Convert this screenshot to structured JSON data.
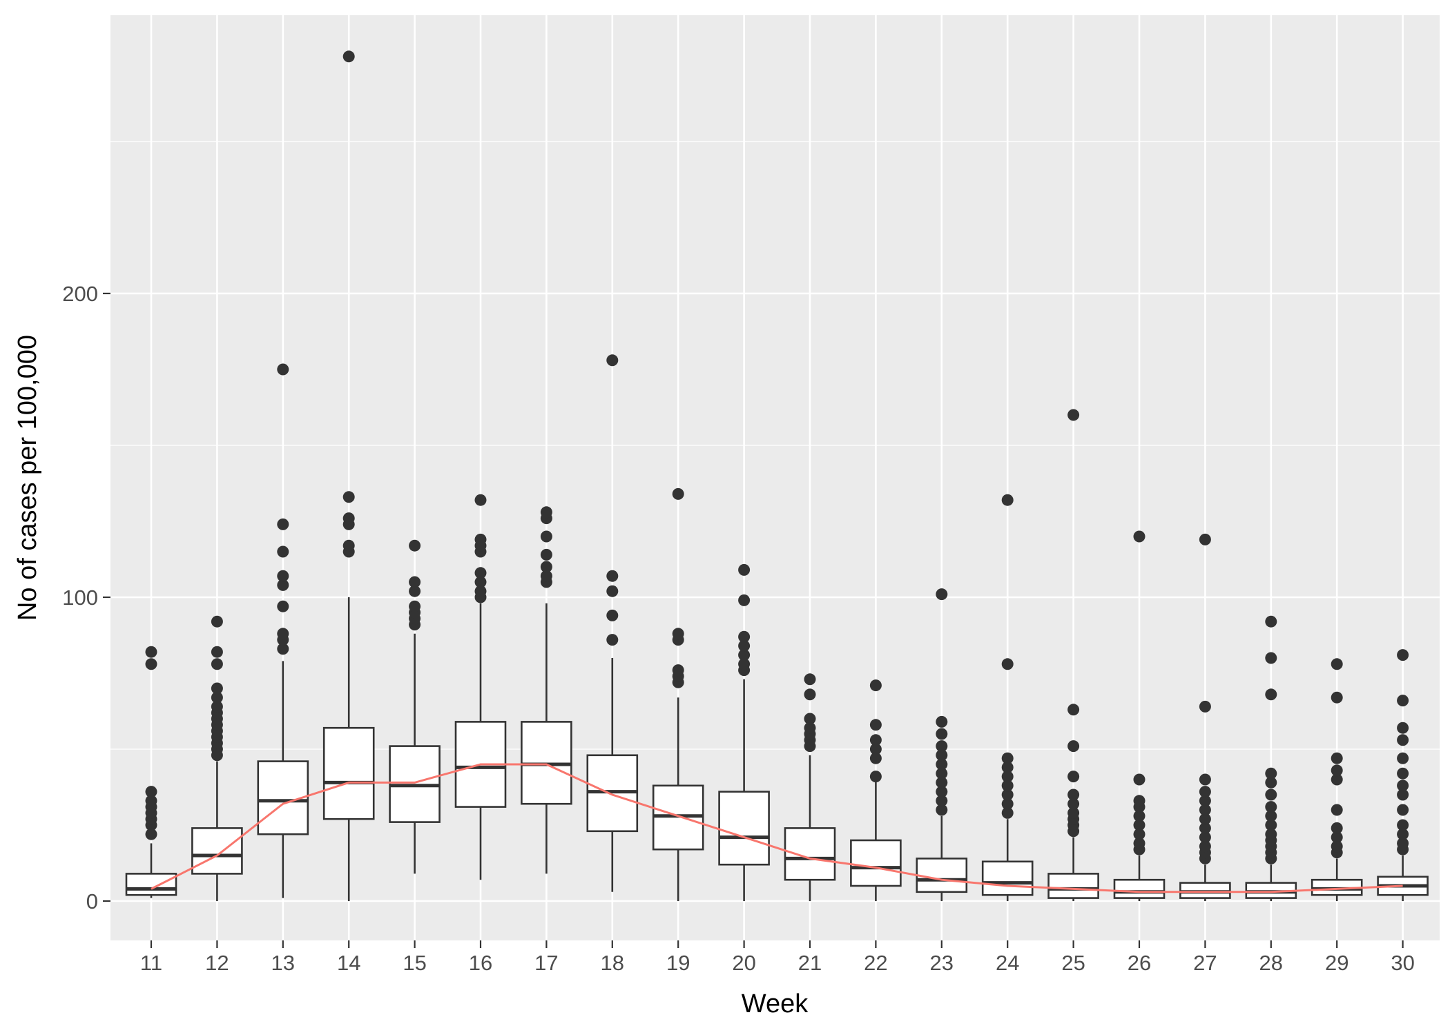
{
  "chart_data": {
    "type": "box",
    "title": "",
    "xlabel": "Week",
    "ylabel": "No of cases per 100,000",
    "categories": [
      "11",
      "12",
      "13",
      "14",
      "15",
      "16",
      "17",
      "18",
      "19",
      "20",
      "21",
      "22",
      "23",
      "24",
      "25",
      "26",
      "27",
      "28",
      "29",
      "30"
    ],
    "yticks": [
      0,
      100,
      200
    ],
    "ylim": [
      -14,
      290
    ],
    "grid": true,
    "legend": "none",
    "colors": {
      "panel": "#ebebeb",
      "grid": "#ffffff",
      "box_fill": "#ffffff",
      "box_stroke": "#333333",
      "outlier": "#333333",
      "trend": "#f8766d"
    },
    "boxes": [
      {
        "week": "11",
        "lower_whisker": 1,
        "q1": 2,
        "median": 4,
        "q3": 9,
        "upper_whisker": 19,
        "outliers": [
          22,
          25,
          27,
          29,
          31,
          33,
          36,
          78,
          82
        ]
      },
      {
        "week": "12",
        "lower_whisker": 0,
        "q1": 9,
        "median": 15,
        "q3": 24,
        "upper_whisker": 46,
        "outliers": [
          48,
          50,
          52,
          54,
          56,
          58,
          60,
          62,
          64,
          67,
          70,
          78,
          82,
          92
        ]
      },
      {
        "week": "13",
        "lower_whisker": 1,
        "q1": 22,
        "median": 33,
        "q3": 46,
        "upper_whisker": 79,
        "outliers": [
          83,
          86,
          88,
          97,
          104,
          107,
          115,
          124,
          175
        ]
      },
      {
        "week": "14",
        "lower_whisker": 0,
        "q1": 27,
        "median": 39,
        "q3": 57,
        "upper_whisker": 100,
        "outliers": [
          115,
          117,
          124,
          126,
          133,
          278
        ]
      },
      {
        "week": "15",
        "lower_whisker": 9,
        "q1": 26,
        "median": 38,
        "q3": 51,
        "upper_whisker": 88,
        "outliers": [
          91,
          93,
          95,
          97,
          102,
          105,
          117
        ]
      },
      {
        "week": "16",
        "lower_whisker": 7,
        "q1": 31,
        "median": 44,
        "q3": 59,
        "upper_whisker": 98,
        "outliers": [
          100,
          102,
          105,
          108,
          115,
          117,
          119,
          132
        ]
      },
      {
        "week": "17",
        "lower_whisker": 9,
        "q1": 32,
        "median": 45,
        "q3": 59,
        "upper_whisker": 98,
        "outliers": [
          105,
          107,
          110,
          114,
          120,
          126,
          128
        ]
      },
      {
        "week": "18",
        "lower_whisker": 3,
        "q1": 23,
        "median": 36,
        "q3": 48,
        "upper_whisker": 80,
        "outliers": [
          86,
          94,
          102,
          107,
          178
        ]
      },
      {
        "week": "19",
        "lower_whisker": 0,
        "q1": 17,
        "median": 28,
        "q3": 38,
        "upper_whisker": 67,
        "outliers": [
          72,
          74,
          76,
          86,
          88,
          134
        ]
      },
      {
        "week": "20",
        "lower_whisker": 0,
        "q1": 12,
        "median": 21,
        "q3": 36,
        "upper_whisker": 73,
        "outliers": [
          76,
          78,
          81,
          84,
          87,
          99,
          109
        ]
      },
      {
        "week": "21",
        "lower_whisker": 0,
        "q1": 7,
        "median": 14,
        "q3": 24,
        "upper_whisker": 48,
        "outliers": [
          51,
          53,
          55,
          57,
          60,
          68,
          73
        ]
      },
      {
        "week": "22",
        "lower_whisker": 0,
        "q1": 5,
        "median": 11,
        "q3": 20,
        "upper_whisker": 40,
        "outliers": [
          41,
          47,
          50,
          53,
          58,
          71
        ]
      },
      {
        "week": "23",
        "lower_whisker": 0,
        "q1": 3,
        "median": 7,
        "q3": 14,
        "upper_whisker": 28,
        "outliers": [
          30,
          33,
          36,
          39,
          42,
          45,
          48,
          51,
          55,
          59,
          101
        ]
      },
      {
        "week": "24",
        "lower_whisker": 0,
        "q1": 2,
        "median": 6,
        "q3": 13,
        "upper_whisker": 27,
        "outliers": [
          29,
          32,
          35,
          38,
          41,
          44,
          47,
          78,
          132
        ]
      },
      {
        "week": "25",
        "lower_whisker": 0,
        "q1": 1,
        "median": 4,
        "q3": 9,
        "upper_whisker": 21,
        "outliers": [
          23,
          25,
          27,
          29,
          32,
          35,
          41,
          51,
          63,
          160
        ]
      },
      {
        "week": "26",
        "lower_whisker": 0,
        "q1": 1,
        "median": 3,
        "q3": 7,
        "upper_whisker": 15,
        "outliers": [
          17,
          19,
          22,
          25,
          28,
          31,
          33,
          40,
          120
        ]
      },
      {
        "week": "27",
        "lower_whisker": 0,
        "q1": 1,
        "median": 3,
        "q3": 6,
        "upper_whisker": 12,
        "outliers": [
          14,
          16,
          18,
          21,
          24,
          27,
          30,
          33,
          36,
          40,
          64,
          119
        ]
      },
      {
        "week": "28",
        "lower_whisker": 0,
        "q1": 1,
        "median": 3,
        "q3": 6,
        "upper_whisker": 12,
        "outliers": [
          14,
          16,
          18,
          20,
          22,
          25,
          28,
          31,
          35,
          39,
          42,
          68,
          80,
          92
        ]
      },
      {
        "week": "29",
        "lower_whisker": 0,
        "q1": 2,
        "median": 4,
        "q3": 7,
        "upper_whisker": 14,
        "outliers": [
          16,
          18,
          21,
          24,
          30,
          40,
          43,
          47,
          67,
          78
        ]
      },
      {
        "week": "30",
        "lower_whisker": 0,
        "q1": 2,
        "median": 5,
        "q3": 8,
        "upper_whisker": 15,
        "outliers": [
          17,
          19,
          22,
          25,
          30,
          35,
          38,
          42,
          47,
          53,
          57,
          66,
          81
        ]
      }
    ],
    "trend_line": {
      "x": [
        "11",
        "12",
        "13",
        "14",
        "15",
        "16",
        "17",
        "18",
        "19",
        "20",
        "21",
        "22",
        "23",
        "24",
        "25",
        "26",
        "27",
        "28",
        "29",
        "30"
      ],
      "y": [
        4,
        15,
        32,
        39,
        39,
        45,
        45,
        35,
        28,
        21,
        14,
        11,
        7,
        5,
        4,
        3,
        3,
        3,
        4,
        5
      ]
    }
  }
}
